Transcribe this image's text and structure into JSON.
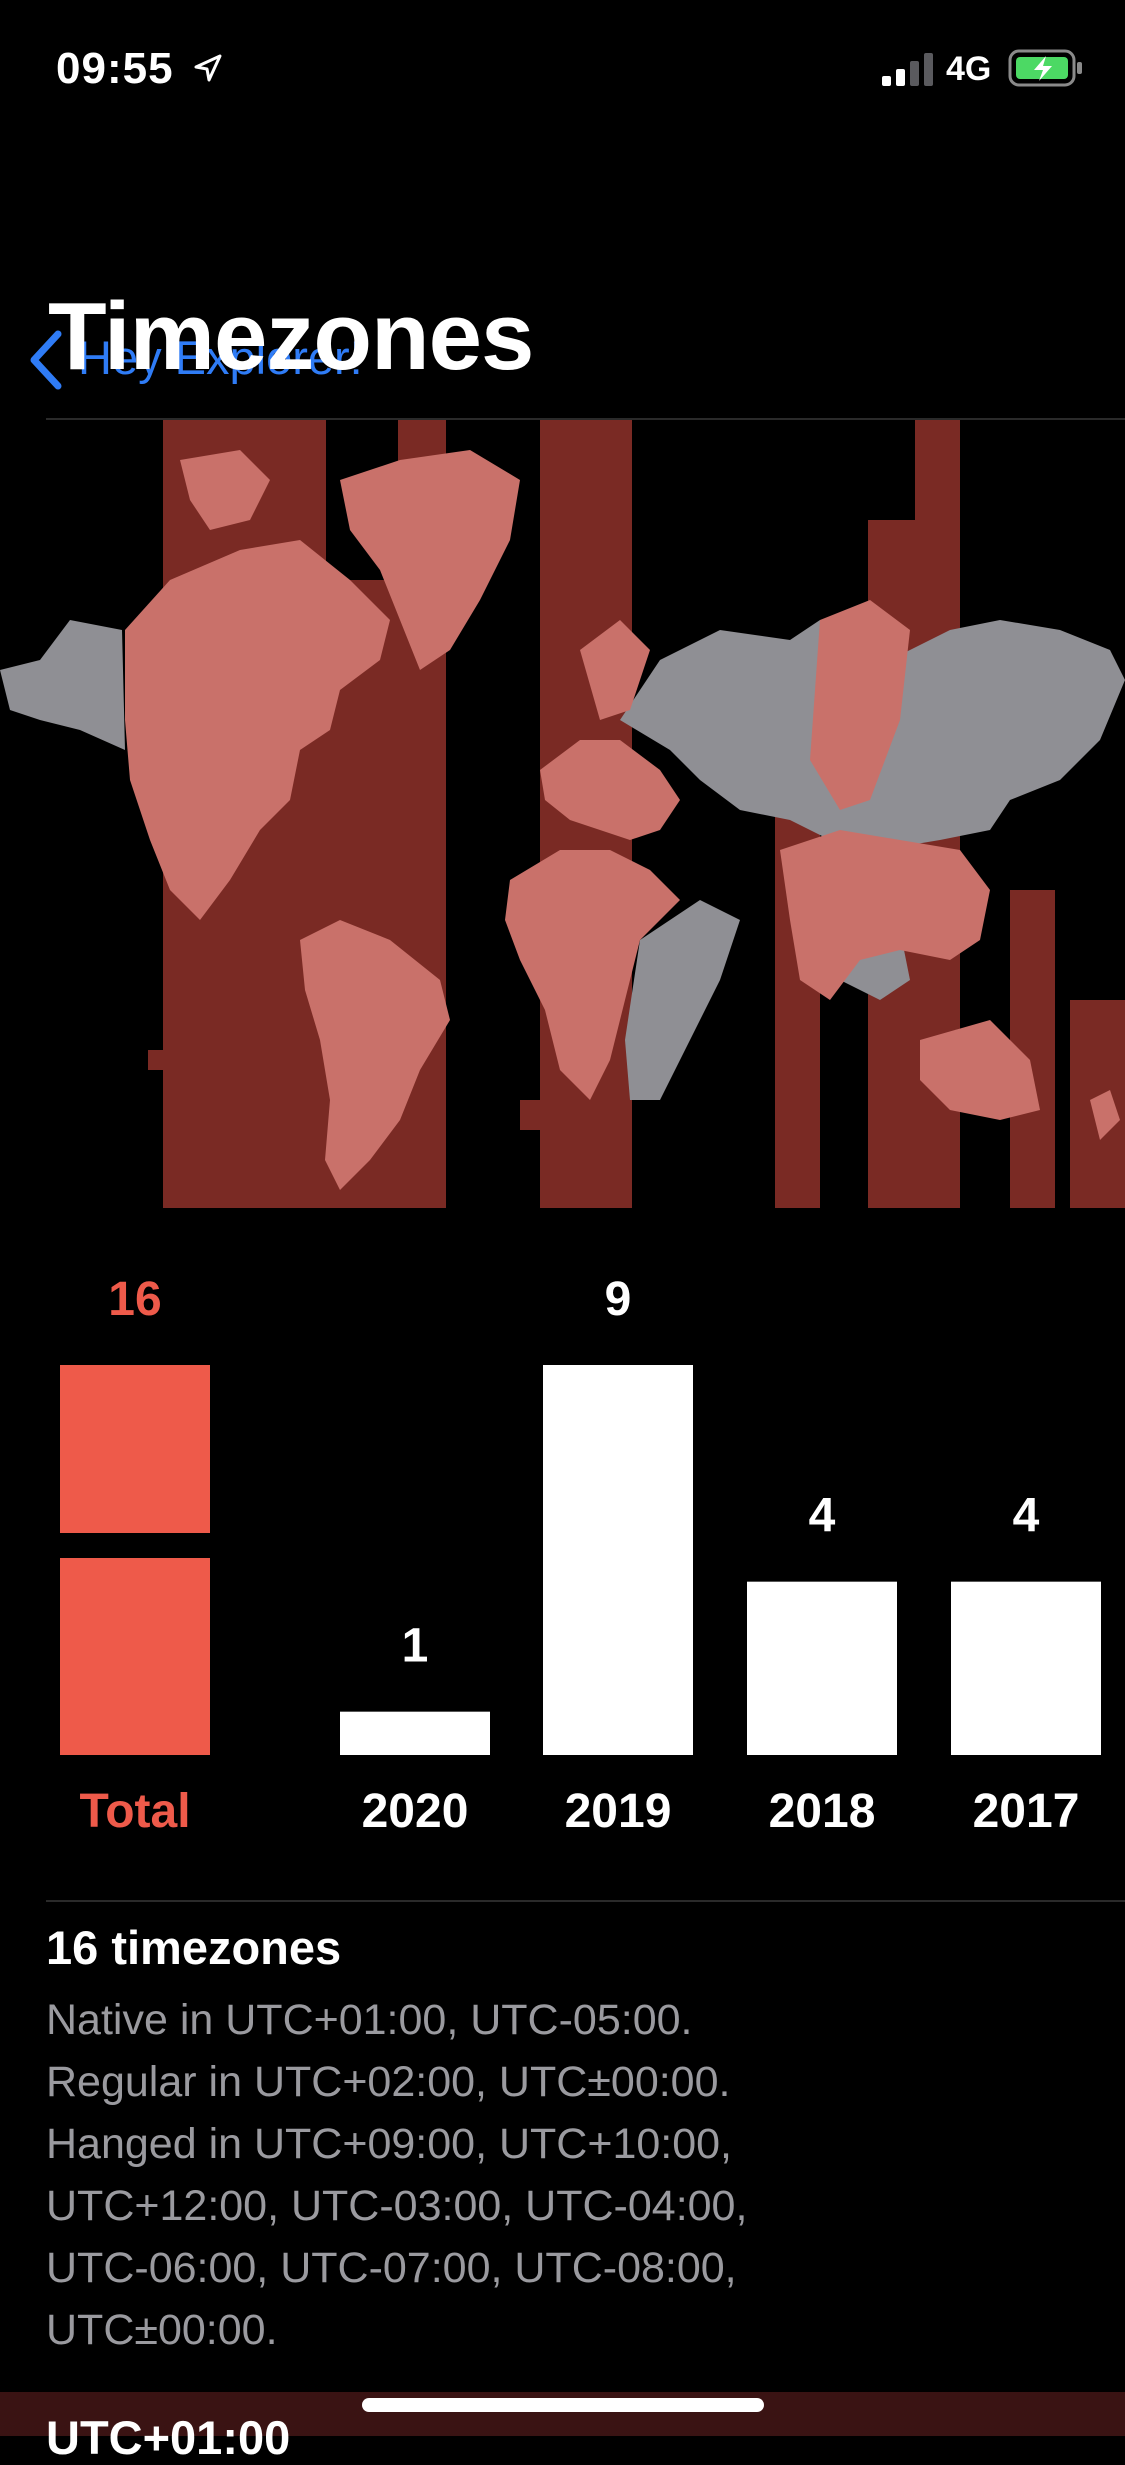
{
  "status_bar": {
    "time": "09:55",
    "network": "4G",
    "icons": [
      "location-arrow-icon",
      "signal-bars-icon",
      "battery-charging-icon"
    ]
  },
  "nav": {
    "back_label": "Hey Explorer!",
    "back_icon": "chevron-left-icon"
  },
  "page_title": "Timezones",
  "colors": {
    "accent": "#ee5a4a",
    "link": "#2f7cf6",
    "timezone_band": "#7a2a24",
    "visited_land": "#c9716a",
    "land": "#8f8f94",
    "secondary_text": "#9a9a9f"
  },
  "chart_data": {
    "type": "bar",
    "total": {
      "label": "Total",
      "value": 16
    },
    "categories": [
      "2020",
      "2019",
      "2018",
      "2017"
    ],
    "values": [
      1,
      9,
      4,
      4
    ]
  },
  "summary": {
    "title": "16 timezones",
    "lines": [
      "Native in UTC+01:00, UTC-05:00.",
      "Regular in UTC+02:00, UTC±00:00.",
      "Hanged in UTC+09:00, UTC+10:00,",
      "UTC+12:00, UTC-03:00, UTC-04:00,",
      "UTC-06:00, UTC-07:00, UTC-08:00,",
      "UTC±00:00."
    ]
  },
  "next_section_title": "UTC+01:00"
}
